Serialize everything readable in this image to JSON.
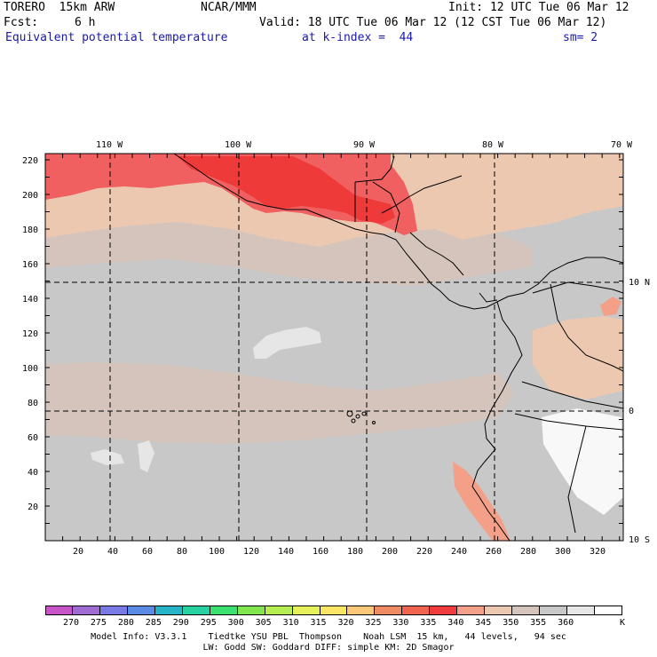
{
  "header": {
    "model": "TORERO  15km ARW",
    "org": "NCAR/MMM",
    "init": "Init: 12 UTC Tue 06 Mar 12",
    "fcst_label": "Fcst:",
    "fcst_value": "6 h",
    "valid": "Valid: 18 UTC Tue 06 Mar 12 (12 CST Tue 06 Mar 12)",
    "field": "Equivalent potential temperature",
    "level": "at k-index =  44",
    "smooth": "sm= 2"
  },
  "map": {
    "top_lon_labels": [
      "110 W",
      "100 W",
      "90 W",
      "80 W",
      "70 W"
    ],
    "right_lat_labels": [
      "10 N",
      "0",
      "10 S"
    ],
    "y_ticks": [
      "220",
      "200",
      "180",
      "160",
      "140",
      "120",
      "100",
      "80",
      "60",
      "40",
      "20"
    ],
    "x_ticks": [
      "20",
      "40",
      "60",
      "80",
      "100",
      "120",
      "140",
      "160",
      "180",
      "200",
      "220",
      "240",
      "260",
      "280",
      "300",
      "320"
    ],
    "colors": {
      "c330": "#ef3a3a",
      "c335": "#f06060",
      "c340": "#f4a088",
      "c345": "#ecc8b0",
      "c350": "#d4c4bc",
      "c355": "#c8c8c8",
      "c360": "#e6e6e6",
      "c365": "#f8f8f8"
    }
  },
  "colorbar": {
    "labels": [
      "270",
      "275",
      "280",
      "285",
      "290",
      "295",
      "300",
      "305",
      "310",
      "315",
      "320",
      "325",
      "330",
      "335",
      "340",
      "345",
      "350",
      "355",
      "360"
    ],
    "unit": "K",
    "colors": [
      "#c855c8",
      "#9f6ad2",
      "#7a7ae6",
      "#5a8ce6",
      "#28b4c8",
      "#28d2a0",
      "#3ce06e",
      "#82e650",
      "#b4ee50",
      "#e6f05a",
      "#fae664",
      "#fac878",
      "#f08c64",
      "#f06450",
      "#f03c3c",
      "#f4a088",
      "#ecc8b0",
      "#d4c4bc",
      "#c8c8c8",
      "#e6e6e6",
      "#ffffff"
    ]
  },
  "footer": {
    "line1": "Model Info: V3.3.1    Tiedtke YSU PBL  Thompson    Noah LSM  15 km,   44 levels,   94 sec",
    "line2": "LW: Godd SW: Goddard DIFF: simple KM: 2D Smagor"
  }
}
